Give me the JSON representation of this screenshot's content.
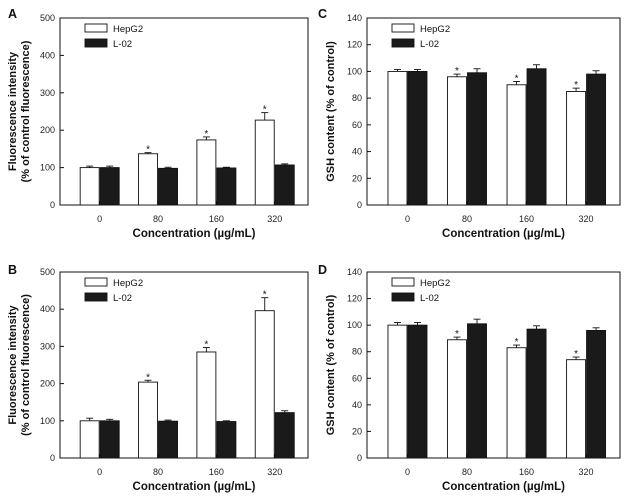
{
  "chart_data": [
    {
      "panel_label": "A",
      "type": "bar",
      "title": "",
      "xlabel": "Concentration (µg/mL)",
      "ylabel": [
        "Fluorescence intensity",
        "(% of control fluorescence)"
      ],
      "ylim": [
        0,
        500
      ],
      "yticks": [
        0,
        100,
        200,
        300,
        400,
        500
      ],
      "categories": [
        "0",
        "80",
        "160",
        "320"
      ],
      "legend_position": "top-left",
      "series": [
        {
          "name": "HepG2",
          "fill": "#ffffff",
          "values": [
            100,
            137,
            174,
            227
          ],
          "errors": [
            4,
            3,
            8,
            20
          ]
        },
        {
          "name": "L-02",
          "fill": "#1a1a1a",
          "values": [
            100,
            98,
            99,
            107
          ],
          "errors": [
            4,
            3,
            2,
            3
          ]
        }
      ],
      "significance": [
        false,
        true,
        true,
        true
      ]
    },
    {
      "panel_label": "C",
      "type": "bar",
      "title": "",
      "xlabel": "Concentration (µg/mL)",
      "ylabel": [
        "GSH content (% of control)"
      ],
      "ylim": [
        0,
        140
      ],
      "yticks": [
        0,
        20,
        40,
        60,
        80,
        100,
        120,
        140
      ],
      "categories": [
        "0",
        "80",
        "160",
        "320"
      ],
      "legend_position": "top-left",
      "series": [
        {
          "name": "HepG2",
          "fill": "#ffffff",
          "values": [
            100,
            96,
            90,
            85
          ],
          "errors": [
            1.5,
            2,
            2.5,
            2.5
          ]
        },
        {
          "name": "L-02",
          "fill": "#1a1a1a",
          "values": [
            100,
            99,
            102,
            98
          ],
          "errors": [
            1.5,
            3,
            3,
            2.5
          ]
        }
      ],
      "significance": [
        false,
        true,
        true,
        true
      ]
    },
    {
      "panel_label": "B",
      "type": "bar",
      "title": "",
      "xlabel": "Concentration (µg/mL)",
      "ylabel": [
        "Fluorescence intensity",
        "(% of control fluorescence)"
      ],
      "ylim": [
        0,
        500
      ],
      "yticks": [
        0,
        100,
        200,
        300,
        400,
        500
      ],
      "categories": [
        "0",
        "80",
        "160",
        "320"
      ],
      "legend_position": "top-left",
      "series": [
        {
          "name": "HepG2",
          "fill": "#ffffff",
          "values": [
            100,
            204,
            285,
            396
          ],
          "errors": [
            7,
            5,
            12,
            35
          ]
        },
        {
          "name": "L-02",
          "fill": "#1a1a1a",
          "values": [
            100,
            99,
            98,
            122
          ],
          "errors": [
            4,
            3,
            2,
            5
          ]
        }
      ],
      "significance": [
        false,
        true,
        true,
        true
      ]
    },
    {
      "panel_label": "D",
      "type": "bar",
      "title": "",
      "xlabel": "Concentration (µg/mL)",
      "ylabel": [
        "GSH content (% of control)"
      ],
      "ylim": [
        0,
        140
      ],
      "yticks": [
        0,
        20,
        40,
        60,
        80,
        100,
        120,
        140
      ],
      "categories": [
        "0",
        "80",
        "160",
        "320"
      ],
      "legend_position": "top-left",
      "series": [
        {
          "name": "HepG2",
          "fill": "#ffffff",
          "values": [
            100,
            89,
            83,
            74
          ],
          "errors": [
            2,
            2,
            2,
            2
          ]
        },
        {
          "name": "L-02",
          "fill": "#1a1a1a",
          "values": [
            100,
            101,
            97,
            96
          ],
          "errors": [
            2,
            3.5,
            2.5,
            2
          ]
        }
      ],
      "significance": [
        false,
        true,
        true,
        true
      ]
    }
  ],
  "colors": {
    "axis": "#111111",
    "bar_outline": "#111111",
    "hepg2": "#ffffff",
    "l02": "#1a1a1a"
  },
  "significance_marker": "*"
}
